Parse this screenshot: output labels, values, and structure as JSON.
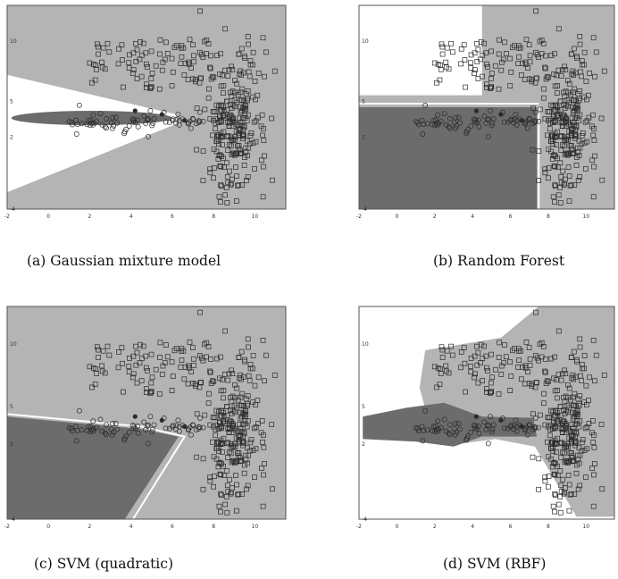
{
  "figure": {
    "colors": {
      "region_light": "#b4b4b4",
      "region_dark": "#6c6c6c",
      "background": "#ffffff",
      "marker": "#2a2a2a"
    },
    "markers": {
      "class_a": "square",
      "class_b": "circle",
      "boundary_points": "filled-circle"
    }
  },
  "chart_data": [
    {
      "type": "scatter",
      "caption": "(a) Gaussian mixture model",
      "xlim": [
        -2,
        11.5
      ],
      "ylim": [
        -4,
        13
      ],
      "x_ticks": [
        "-2",
        "0",
        "2",
        "4",
        "6",
        "8",
        "10"
      ],
      "y_ticks": [
        "-4",
        "2",
        "5",
        "10"
      ],
      "legend": "none",
      "regions": "gmm"
    },
    {
      "type": "scatter",
      "caption": "(b) Random Forest",
      "xlim": [
        -2,
        11.5
      ],
      "ylim": [
        -4,
        13
      ],
      "x_ticks": [
        "-2",
        "0",
        "2",
        "4",
        "6",
        "8",
        "10"
      ],
      "y_ticks": [
        "-4",
        "2",
        "5",
        "10"
      ],
      "legend": "none",
      "regions": "rf"
    },
    {
      "type": "scatter",
      "caption": "(c) SVM (quadratic)",
      "xlim": [
        -2,
        11.5
      ],
      "ylim": [
        -4,
        13
      ],
      "x_ticks": [
        "-2",
        "0",
        "2",
        "4",
        "6",
        "8",
        "10"
      ],
      "y_ticks": [
        "-4",
        "2",
        "5",
        "10"
      ],
      "legend": "none",
      "regions": "svm_quad"
    },
    {
      "type": "scatter",
      "caption": "(d) SVM (RBF)",
      "xlim": [
        -2,
        11.5
      ],
      "ylim": [
        -4,
        13
      ],
      "x_ticks": [
        "-2",
        "0",
        "2",
        "4",
        "6",
        "8",
        "10"
      ],
      "y_ticks": [
        "-4",
        "2",
        "5",
        "10"
      ],
      "legend": "none",
      "regions": "svm_rbf"
    }
  ]
}
